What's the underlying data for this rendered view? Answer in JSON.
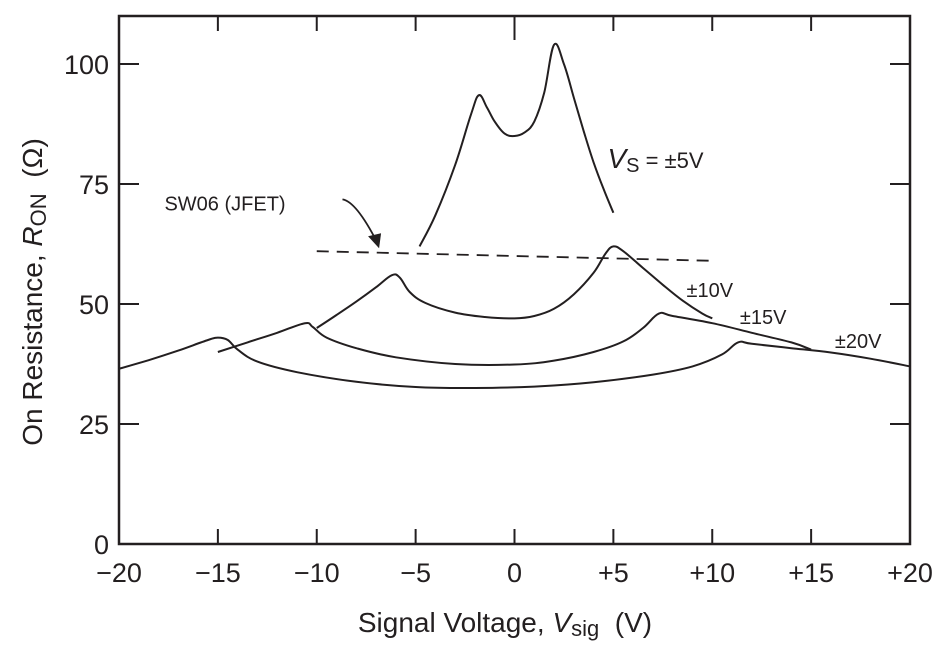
{
  "chart_data": {
    "type": "line",
    "title": "",
    "xlabel": "Signal Voltage, V_sig (V)",
    "xlabel_parts": {
      "prefix": "Signal Voltage, ",
      "var": "V",
      "sub": "sig",
      "suffix": "  (V)"
    },
    "ylabel": "On Resistance, R_ON (Ω)",
    "ylabel_parts": {
      "prefix": "On Resistance, ",
      "var": "R",
      "sub": "ON",
      "suffix": "  (Ω)"
    },
    "xlim": [
      -20,
      20
    ],
    "ylim": [
      0,
      110
    ],
    "grid": false,
    "x_ticks": [
      -20,
      -15,
      -10,
      -5,
      0,
      5,
      10,
      15,
      20
    ],
    "x_tick_labels": [
      "−20",
      "−15",
      "−10",
      "−5",
      "0",
      "+5",
      "+10",
      "+15",
      "+20"
    ],
    "y_ticks": [
      0,
      25,
      50,
      75,
      100
    ],
    "y_tick_labels": [
      "0",
      "25",
      "50",
      "75",
      "100"
    ],
    "series": [
      {
        "name": "VS = ±5V",
        "label_parts": {
          "var": "V",
          "sub": "S",
          "rest": " = ±5V"
        },
        "style": "solid",
        "points": [
          [
            -4.8,
            62
          ],
          [
            -4,
            68.5
          ],
          [
            -3,
            79
          ],
          [
            -2.2,
            89.5
          ],
          [
            -1.8,
            93.5
          ],
          [
            -1.4,
            91
          ],
          [
            -1,
            88
          ],
          [
            -0.5,
            85.5
          ],
          [
            0,
            85
          ],
          [
            0.5,
            85.7
          ],
          [
            1,
            88
          ],
          [
            1.5,
            94
          ],
          [
            2,
            104
          ],
          [
            2.5,
            100
          ],
          [
            3,
            93
          ],
          [
            3.5,
            86
          ],
          [
            4,
            79.5
          ],
          [
            4.5,
            74
          ],
          [
            5,
            69
          ]
        ]
      },
      {
        "name": "±10V",
        "style": "solid",
        "points": [
          [
            -10,
            45
          ],
          [
            -9,
            47.7
          ],
          [
            -8,
            50.5
          ],
          [
            -7,
            53.5
          ],
          [
            -6.2,
            56
          ],
          [
            -5.8,
            55.5
          ],
          [
            -5.3,
            52.5
          ],
          [
            -4.5,
            50.2
          ],
          [
            -3,
            48.2
          ],
          [
            -1.5,
            47.3
          ],
          [
            0,
            47
          ],
          [
            1,
            47.5
          ],
          [
            2,
            49
          ],
          [
            3,
            52
          ],
          [
            4,
            56.5
          ],
          [
            4.6,
            60.5
          ],
          [
            5,
            62
          ],
          [
            5.5,
            61
          ],
          [
            6.5,
            57.5
          ],
          [
            7.5,
            54
          ],
          [
            8.5,
            50.7
          ],
          [
            9.5,
            48
          ],
          [
            10,
            47
          ]
        ]
      },
      {
        "name": "±15V",
        "style": "solid",
        "points": [
          [
            -15,
            40
          ],
          [
            -13.5,
            42
          ],
          [
            -12,
            44
          ],
          [
            -10.6,
            46
          ],
          [
            -10.2,
            45.2
          ],
          [
            -9.5,
            43
          ],
          [
            -8,
            40.8
          ],
          [
            -6,
            38.9
          ],
          [
            -3,
            37.5
          ],
          [
            0,
            37.4
          ],
          [
            2,
            38.2
          ],
          [
            4,
            40
          ],
          [
            5.5,
            42.2
          ],
          [
            6.5,
            45
          ],
          [
            7.3,
            48
          ],
          [
            8,
            47.5
          ],
          [
            10,
            46
          ],
          [
            12,
            44
          ],
          [
            14,
            42
          ],
          [
            15,
            40.5
          ]
        ]
      },
      {
        "name": "±20V",
        "style": "solid",
        "points": [
          [
            -20,
            36.5
          ],
          [
            -18.5,
            38.3
          ],
          [
            -17,
            40.3
          ],
          [
            -15.5,
            42.5
          ],
          [
            -15,
            43
          ],
          [
            -14.5,
            42.5
          ],
          [
            -14,
            40.5
          ],
          [
            -13,
            38
          ],
          [
            -11,
            35.8
          ],
          [
            -8,
            33.8
          ],
          [
            -5,
            32.7
          ],
          [
            -2,
            32.5
          ],
          [
            1,
            32.8
          ],
          [
            4,
            33.7
          ],
          [
            7,
            35.3
          ],
          [
            9,
            37
          ],
          [
            10.5,
            39.5
          ],
          [
            11.3,
            42
          ],
          [
            12,
            41.7
          ],
          [
            14,
            40.8
          ],
          [
            16,
            39.9
          ],
          [
            18,
            38.6
          ],
          [
            20,
            37
          ]
        ]
      },
      {
        "name": "SW06 (JFET)",
        "style": "dashed",
        "points": [
          [
            -10,
            61
          ],
          [
            0,
            60
          ],
          [
            10,
            59
          ]
        ]
      }
    ],
    "annotations": [
      {
        "text": "SW06 (JFET)",
        "x": -17.7,
        "y": 69.5,
        "arrow_to": [
          -7,
          61.2
        ]
      },
      {
        "text": "±10V",
        "x": 8.7,
        "y": 51.5
      },
      {
        "text": "±15V",
        "x": 11.4,
        "y": 45.8
      },
      {
        "text": "±20V",
        "x": 16.2,
        "y": 40.8
      },
      {
        "text": "VS = ±5V",
        "x": 4.7,
        "y": 78.3
      }
    ]
  }
}
